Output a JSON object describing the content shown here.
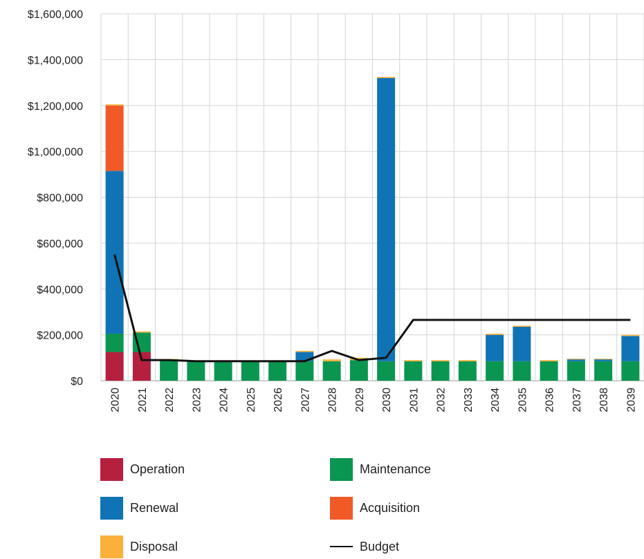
{
  "chart_data": {
    "type": "bar",
    "stacked": true,
    "categories": [
      "2020",
      "2021",
      "2022",
      "2023",
      "2024",
      "2025",
      "2026",
      "2027",
      "2028",
      "2029",
      "2030",
      "2031",
      "2032",
      "2033",
      "2034",
      "2035",
      "2036",
      "2037",
      "2038",
      "2039"
    ],
    "ylim": [
      0,
      1600000
    ],
    "yticks": [
      0,
      200000,
      400000,
      600000,
      800000,
      1000000,
      1200000,
      1400000,
      1600000
    ],
    "ytick_labels": [
      "$0",
      "$200,000",
      "$400,000",
      "$600,000",
      "$800,000",
      "$1,000,000",
      "$1,200,000",
      "$1,400,000",
      "$1,600,000"
    ],
    "grid": true,
    "legend_position": "bottom",
    "series": [
      {
        "name": "Operation",
        "color": "#b5203f",
        "values": [
          125000,
          125000,
          0,
          0,
          0,
          0,
          0,
          0,
          0,
          0,
          0,
          0,
          0,
          0,
          0,
          0,
          0,
          0,
          0,
          0
        ]
      },
      {
        "name": "Maintenance",
        "color": "#0a9650",
        "values": [
          80000,
          85000,
          90000,
          85000,
          85000,
          85000,
          85000,
          85000,
          85000,
          90000,
          85000,
          85000,
          85000,
          85000,
          85000,
          85000,
          85000,
          85000,
          85000,
          85000
        ]
      },
      {
        "name": "Renewal",
        "color": "#1073b5",
        "values": [
          710000,
          0,
          0,
          0,
          0,
          0,
          0,
          40000,
          0,
          0,
          1235000,
          0,
          0,
          0,
          115000,
          150000,
          0,
          8000,
          8000,
          110000
        ]
      },
      {
        "name": "Acquisition",
        "color": "#f15a27",
        "values": [
          285000,
          0,
          0,
          0,
          0,
          0,
          0,
          0,
          0,
          0,
          0,
          0,
          0,
          0,
          0,
          0,
          0,
          0,
          0,
          0
        ]
      },
      {
        "name": "Disposal",
        "color": "#fbb03b",
        "values": [
          5000,
          5000,
          5000,
          3000,
          3000,
          3000,
          3000,
          5000,
          8000,
          10000,
          5000,
          5000,
          5000,
          5000,
          5000,
          5000,
          5000,
          3000,
          3000,
          5000
        ]
      }
    ],
    "line": {
      "name": "Budget",
      "color": "#111111",
      "values": [
        550000,
        90000,
        90000,
        85000,
        85000,
        85000,
        85000,
        85000,
        130000,
        90000,
        100000,
        265000,
        265000,
        265000,
        265000,
        265000,
        265000,
        265000,
        265000,
        265000
      ]
    }
  },
  "legend": {
    "operation": "Operation",
    "maintenance": "Maintenance",
    "renewal": "Renewal",
    "acquisition": "Acquisition",
    "disposal": "Disposal",
    "budget": "Budget"
  },
  "colors": {
    "operation": "#b5203f",
    "maintenance": "#0a9650",
    "renewal": "#1073b5",
    "acquisition": "#f15a27",
    "disposal": "#fbb03b",
    "budget": "#111111"
  }
}
